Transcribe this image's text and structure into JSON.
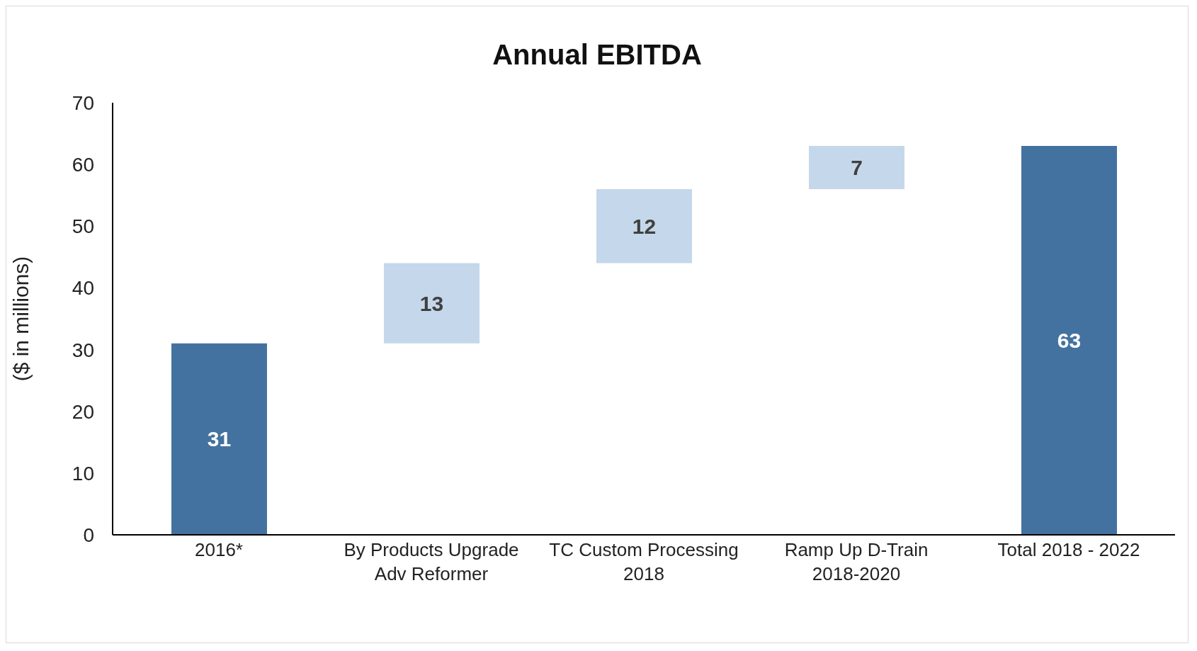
{
  "chart_data": {
    "type": "bar",
    "title": "Annual EBITDA",
    "ylabel": "($ in millions)",
    "categories": [
      "2016*",
      "By Products Upgrade\nAdv Reformer",
      "TC Custom Processing\n2018",
      "Ramp Up D-Train\n2018-2020",
      "Total 2018 - 2022"
    ],
    "values": [
      31,
      13,
      12,
      7,
      63
    ],
    "base": [
      0,
      31,
      44,
      56,
      0
    ],
    "colors": [
      "#4472a0",
      "#c5d7ea",
      "#c5d7ea",
      "#c5d7ea",
      "#4472a0"
    ],
    "ylim": [
      0,
      70
    ],
    "yticks": [
      0,
      10,
      20,
      30,
      40,
      50,
      60,
      70
    ],
    "data_labels": true
  }
}
